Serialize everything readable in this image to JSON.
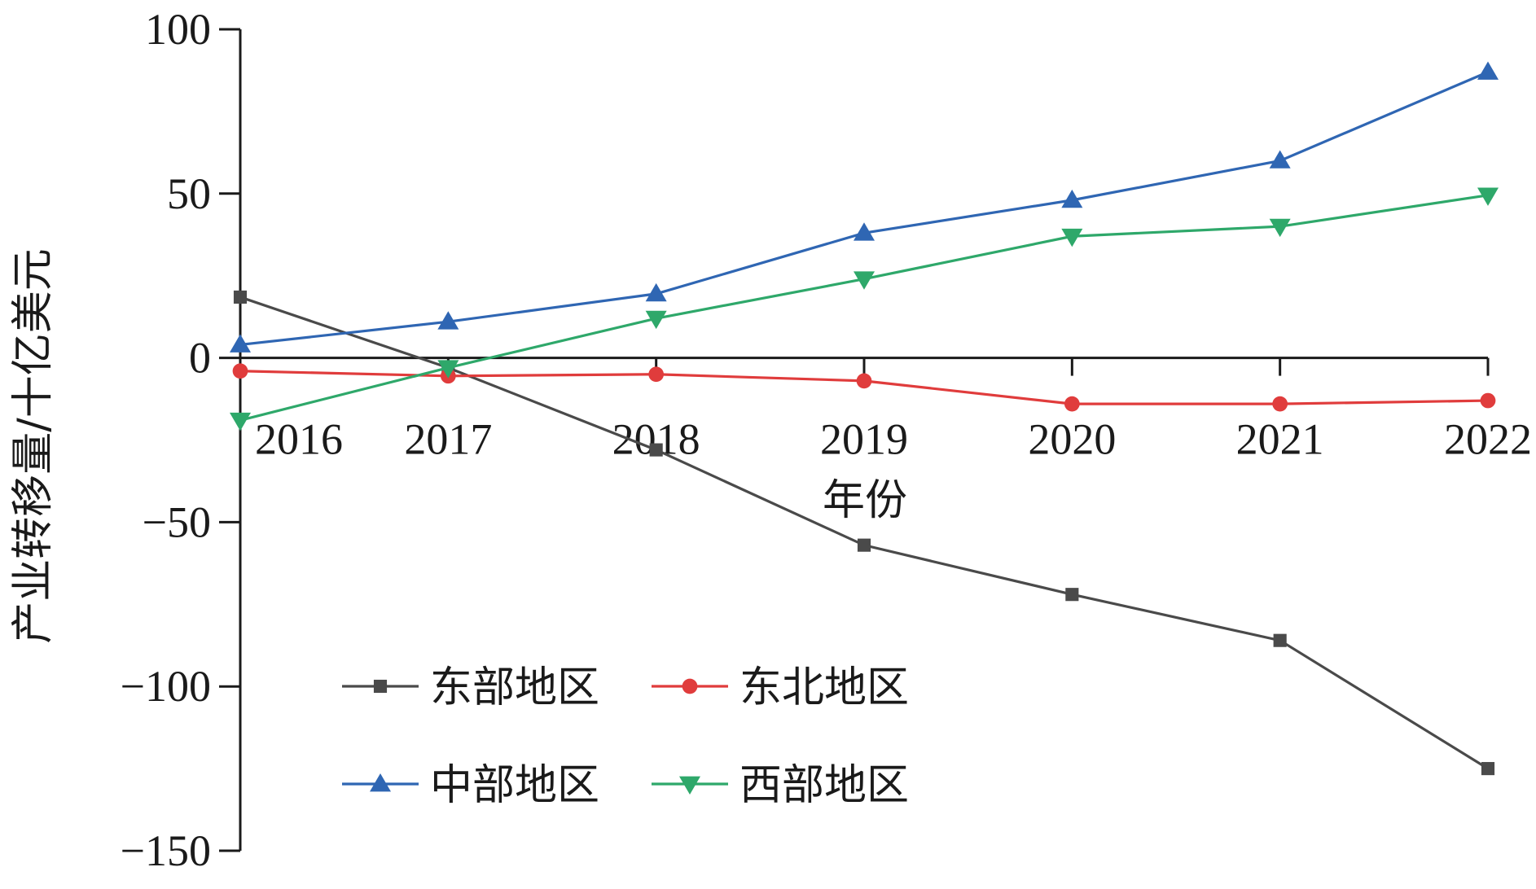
{
  "chart_data": {
    "type": "line",
    "xlabel": "年份",
    "ylabel": "产业转移量/十亿美元",
    "ylim": [
      -150,
      100
    ],
    "yticks": [
      {
        "value": 100,
        "label": "100"
      },
      {
        "value": 50,
        "label": "50"
      },
      {
        "value": 0,
        "label": "0"
      },
      {
        "value": -50,
        "label": "−50"
      },
      {
        "value": -100,
        "label": "−100"
      },
      {
        "value": -150,
        "label": "−150"
      }
    ],
    "categories": [
      "2016",
      "2017",
      "2018",
      "2019",
      "2020",
      "2021",
      "2022"
    ],
    "series": [
      {
        "name": "东部地区",
        "color": "#4a4a4a",
        "marker": "square",
        "values": [
          18.5,
          -3,
          -28,
          -57,
          -72,
          -86,
          -125
        ]
      },
      {
        "name": "东北地区",
        "color": "#e03c3c",
        "marker": "circle",
        "values": [
          -4,
          -5.5,
          -5,
          -7,
          -14,
          -14,
          -13
        ]
      },
      {
        "name": "中部地区",
        "color": "#2f66b3",
        "marker": "triangle-up",
        "values": [
          4,
          11,
          19.5,
          38,
          48,
          60,
          87
        ]
      },
      {
        "name": "西部地区",
        "color": "#2ea86a",
        "marker": "triangle-down",
        "values": [
          -19,
          -3,
          12,
          24,
          37,
          40,
          49.5
        ]
      }
    ],
    "legend": {
      "placement": "lower-left",
      "columns": 2
    },
    "grid": false
  }
}
